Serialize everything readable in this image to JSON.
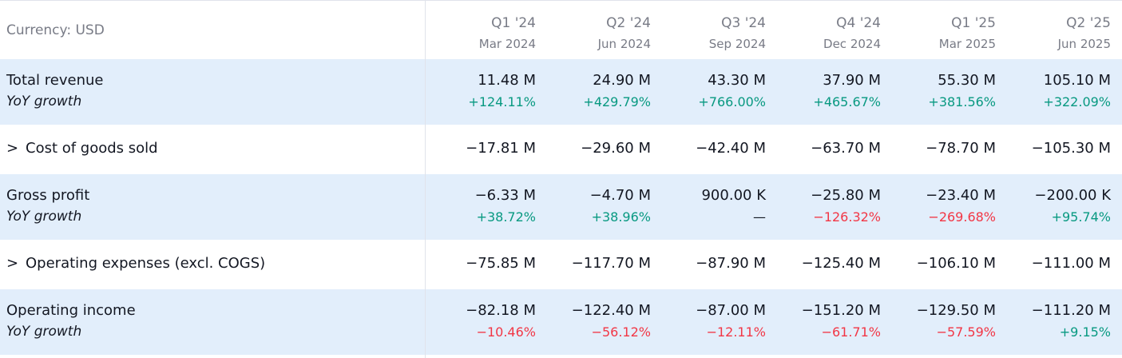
{
  "header": {
    "currency_label": "Currency: USD",
    "periods": [
      {
        "quarter": "Q1 '24",
        "date": "Mar 2024"
      },
      {
        "quarter": "Q2 '24",
        "date": "Jun 2024"
      },
      {
        "quarter": "Q3 '24",
        "date": "Sep 2024"
      },
      {
        "quarter": "Q4 '24",
        "date": "Dec 2024"
      },
      {
        "quarter": "Q1 '25",
        "date": "Mar 2025"
      },
      {
        "quarter": "Q2 '25",
        "date": "Jun 2025"
      }
    ]
  },
  "rows": [
    {
      "label": "Total revenue",
      "expandable": false,
      "values": [
        "11.48 M",
        "24.90 M",
        "43.30 M",
        "37.90 M",
        "55.30 M",
        "105.10 M"
      ],
      "growth_label": "YoY growth",
      "growth": [
        "+124.11%",
        "+429.79%",
        "+766.00%",
        "+465.67%",
        "+381.56%",
        "+322.09%"
      ]
    },
    {
      "label": "Cost of goods sold",
      "expandable": true,
      "chevron": ">",
      "values": [
        "−17.81 M",
        "−29.60 M",
        "−42.40 M",
        "−63.70 M",
        "−78.70 M",
        "−105.30 M"
      ]
    },
    {
      "label": "Gross profit",
      "expandable": false,
      "values": [
        "−6.33 M",
        "−4.70 M",
        "900.00 K",
        "−25.80 M",
        "−23.40 M",
        "−200.00 K"
      ],
      "growth_label": "YoY growth",
      "growth": [
        "+38.72%",
        "+38.96%",
        "—",
        "−126.32%",
        "−269.68%",
        "+95.74%"
      ]
    },
    {
      "label": "Operating expenses (excl. COGS)",
      "expandable": true,
      "chevron": ">",
      "values": [
        "−75.85 M",
        "−117.70 M",
        "−87.90 M",
        "−125.40 M",
        "−106.10 M",
        "−111.00 M"
      ]
    },
    {
      "label": "Operating income",
      "expandable": false,
      "values": [
        "−82.18 M",
        "−122.40 M",
        "−87.00 M",
        "−151.20 M",
        "−129.50 M",
        "−111.20 M"
      ],
      "growth_label": "YoY growth",
      "growth": [
        "−10.46%",
        "−56.12%",
        "−12.11%",
        "−61.71%",
        "−57.59%",
        "+9.15%"
      ]
    }
  ],
  "colors": {
    "highlight_row_bg": "#e2eefb",
    "positive": "#089981",
    "negative": "#f23645",
    "muted_text": "#787b86",
    "text": "#131722",
    "separator": "#e0e3eb"
  }
}
